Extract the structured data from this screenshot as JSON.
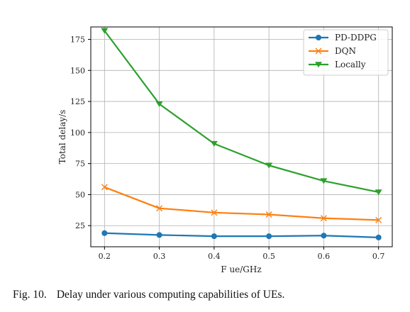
{
  "chart_data": {
    "type": "line",
    "x": [
      0.2,
      0.3,
      0.4,
      0.5,
      0.6,
      0.7
    ],
    "xticks": [
      "0.2",
      "0.3",
      "0.4",
      "0.5",
      "0.6",
      "0.7"
    ],
    "yticks": [
      "25",
      "50",
      "75",
      "100",
      "125",
      "150",
      "175"
    ],
    "yticks_values": [
      25,
      50,
      75,
      100,
      125,
      150,
      175
    ],
    "xlabel": "F ue/GHz",
    "ylabel": "Total delay/s",
    "xlim": [
      0.175,
      0.725
    ],
    "ylim": [
      8,
      185
    ],
    "grid": true,
    "legend_position": "top-right",
    "series": [
      {
        "name": "PD-DDPG",
        "color": "#1f77b4",
        "marker": "circle",
        "values": [
          19,
          17.5,
          16.5,
          16.5,
          17,
          15.5
        ]
      },
      {
        "name": "DQN",
        "color": "#ff7f0e",
        "marker": "x",
        "values": [
          56,
          39,
          35.5,
          34,
          31,
          29.5
        ]
      },
      {
        "name": "Locally",
        "color": "#2ca02c",
        "marker": "triangle-down",
        "values": [
          182,
          123,
          91,
          73.5,
          61,
          52
        ]
      }
    ]
  },
  "caption": {
    "label": "Fig. 10.",
    "text": "Delay under various computing capabilities of UEs."
  }
}
